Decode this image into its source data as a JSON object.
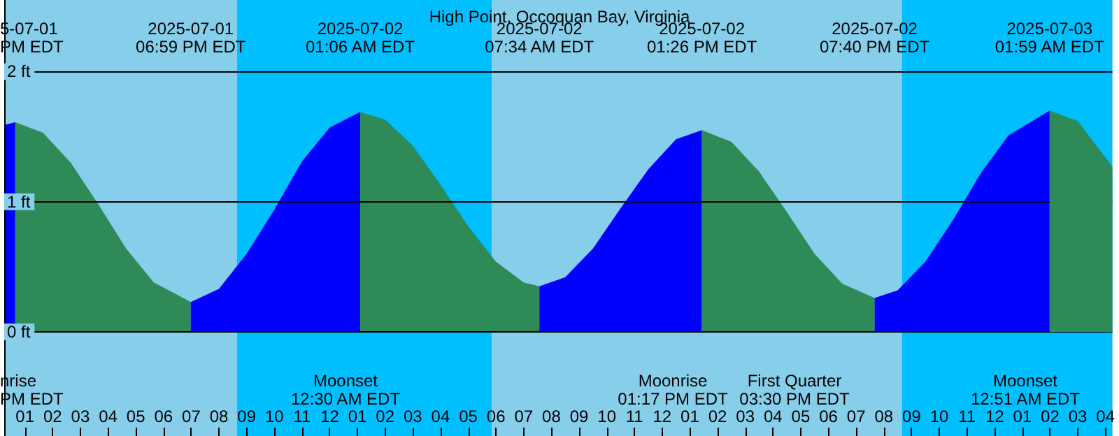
{
  "chart_data": {
    "type": "area",
    "title": "High Point, Occoquan Bay, Virginia",
    "xlim": [
      "2025-07-01T12:15",
      "2025-07-03T04:15"
    ],
    "ylim": [
      -0.8,
      2.55
    ],
    "xticks": [
      {
        "value": "2025-07-01T13:00",
        "label": "01"
      },
      {
        "value": "2025-07-01T14:00",
        "label": "02"
      },
      {
        "value": "2025-07-01T15:00",
        "label": "03"
      },
      {
        "value": "2025-07-01T16:00",
        "label": "04"
      },
      {
        "value": "2025-07-01T17:00",
        "label": "05"
      },
      {
        "value": "2025-07-01T18:00",
        "label": "06"
      },
      {
        "value": "2025-07-01T19:00",
        "label": "07"
      },
      {
        "value": "2025-07-01T20:00",
        "label": "08"
      },
      {
        "value": "2025-07-01T21:00",
        "label": "09"
      },
      {
        "value": "2025-07-01T22:00",
        "label": "10"
      },
      {
        "value": "2025-07-01T23:00",
        "label": "11"
      },
      {
        "value": "2025-07-02T00:00",
        "label": "12"
      },
      {
        "value": "2025-07-02T01:00",
        "label": "01"
      },
      {
        "value": "2025-07-02T02:00",
        "label": "02"
      },
      {
        "value": "2025-07-02T03:00",
        "label": "03"
      },
      {
        "value": "2025-07-02T04:00",
        "label": "04"
      },
      {
        "value": "2025-07-02T05:00",
        "label": "05"
      },
      {
        "value": "2025-07-02T06:00",
        "label": "06"
      },
      {
        "value": "2025-07-02T07:00",
        "label": "07"
      },
      {
        "value": "2025-07-02T08:00",
        "label": "08"
      },
      {
        "value": "2025-07-02T09:00",
        "label": "09"
      },
      {
        "value": "2025-07-02T10:00",
        "label": "10"
      },
      {
        "value": "2025-07-02T11:00",
        "label": "11"
      },
      {
        "value": "2025-07-02T12:00",
        "label": "12"
      },
      {
        "value": "2025-07-02T13:00",
        "label": "01"
      },
      {
        "value": "2025-07-02T14:00",
        "label": "02"
      },
      {
        "value": "2025-07-02T15:00",
        "label": "03"
      },
      {
        "value": "2025-07-02T16:00",
        "label": "04"
      },
      {
        "value": "2025-07-02T17:00",
        "label": "05"
      },
      {
        "value": "2025-07-02T18:00",
        "label": "06"
      },
      {
        "value": "2025-07-02T19:00",
        "label": "07"
      },
      {
        "value": "2025-07-02T20:00",
        "label": "08"
      },
      {
        "value": "2025-07-02T21:00",
        "label": "09"
      },
      {
        "value": "2025-07-02T22:00",
        "label": "10"
      },
      {
        "value": "2025-07-02T23:00",
        "label": "11"
      },
      {
        "value": "2025-07-03T00:00",
        "label": "12"
      },
      {
        "value": "2025-07-03T01:00",
        "label": "01"
      },
      {
        "value": "2025-07-03T02:00",
        "label": "02"
      },
      {
        "value": "2025-07-03T03:00",
        "label": "03"
      },
      {
        "value": "2025-07-03T04:00",
        "label": "04"
      }
    ],
    "yticks": [
      {
        "value": 0,
        "label": "0 ft"
      },
      {
        "value": 1,
        "label": "1 ft"
      },
      {
        "value": 2,
        "label": "2 ft"
      }
    ],
    "grid": "y",
    "bands": [
      {
        "axis": "x",
        "from": "2025-07-01T12:15",
        "to": "2025-07-01T20:39",
        "color": "#87ceeb"
      },
      {
        "axis": "x",
        "from": "2025-07-01T20:39",
        "to": "2025-07-02T05:51",
        "color": "#00bfff"
      },
      {
        "axis": "x",
        "from": "2025-07-02T05:51",
        "to": "2025-07-02T20:39",
        "color": "#87ceeb"
      },
      {
        "axis": "x",
        "from": "2025-07-02T20:39",
        "to": "2025-07-03T04:15",
        "color": "#00bfff"
      }
    ],
    "series": [
      {
        "color": "#0000ff",
        "x": [
          "2025-07-01T12:15",
          "2025-07-01T12:39"
        ],
        "values": [
          1.59,
          1.61
        ]
      },
      {
        "color": "#2e8b57",
        "x": [
          "2025-07-01T12:39",
          "2025-07-01T13:39",
          "2025-07-01T14:39",
          "2025-07-01T15:39",
          "2025-07-01T16:39",
          "2025-07-01T17:39",
          "2025-07-01T18:59"
        ],
        "values": [
          1.61,
          1.53,
          1.3,
          0.98,
          0.64,
          0.38,
          0.23
        ]
      },
      {
        "color": "#0000ff",
        "x": [
          "2025-07-01T18:59",
          "2025-07-01T20:00",
          "2025-07-01T21:00",
          "2025-07-01T22:00",
          "2025-07-01T23:00",
          "2025-07-02T00:00",
          "2025-07-02T01:06"
        ],
        "values": [
          0.23,
          0.33,
          0.6,
          0.94,
          1.31,
          1.57,
          1.69
        ]
      },
      {
        "color": "#2e8b57",
        "x": [
          "2025-07-02T01:06",
          "2025-07-02T02:00",
          "2025-07-02T03:00",
          "2025-07-02T04:00",
          "2025-07-02T05:00",
          "2025-07-02T06:00",
          "2025-07-02T07:00",
          "2025-07-02T07:34"
        ],
        "values": [
          1.69,
          1.63,
          1.43,
          1.13,
          0.81,
          0.54,
          0.38,
          0.35
        ]
      },
      {
        "color": "#0000ff",
        "x": [
          "2025-07-02T07:34",
          "2025-07-02T08:30",
          "2025-07-02T09:30",
          "2025-07-02T10:30",
          "2025-07-02T11:30",
          "2025-07-02T12:30",
          "2025-07-02T13:26"
        ],
        "values": [
          0.35,
          0.42,
          0.64,
          0.95,
          1.25,
          1.48,
          1.55
        ]
      },
      {
        "color": "#2e8b57",
        "x": [
          "2025-07-02T13:26",
          "2025-07-02T14:30",
          "2025-07-02T15:30",
          "2025-07-02T16:30",
          "2025-07-02T17:30",
          "2025-07-02T18:30",
          "2025-07-02T19:40"
        ],
        "values": [
          1.55,
          1.46,
          1.23,
          0.92,
          0.6,
          0.37,
          0.26
        ]
      },
      {
        "color": "#0000ff",
        "x": [
          "2025-07-02T19:40",
          "2025-07-02T20:30",
          "2025-07-02T21:30",
          "2025-07-02T22:30",
          "2025-07-02T23:30",
          "2025-07-03T00:30",
          "2025-07-03T01:59"
        ],
        "values": [
          0.26,
          0.32,
          0.54,
          0.86,
          1.22,
          1.51,
          1.7
        ]
      },
      {
        "color": "#2e8b57",
        "x": [
          "2025-07-03T01:59",
          "2025-07-03T03:00",
          "2025-07-03T04:15"
        ],
        "values": [
          1.7,
          1.62,
          1.27
        ]
      }
    ],
    "annotations": [
      "5-07-01\nPM EDT",
      "nrise\nPM EDT",
      "2025-07-01\n06:59 PM EDT",
      "2025-07-02\n01:06 AM EDT",
      "2025-07-02\n07:34 AM EDT",
      "2025-07-02\n01:26 PM EDT",
      "2025-07-02\n07:40 PM EDT",
      "2025-07-03\n01:59 AM EDT",
      "Moonset\n12:30 AM EDT",
      "Moonrise\n01:17 PM EDT",
      "First Quarter\n03:30 PM EDT",
      "Moonset\n12:51 AM EDT"
    ]
  }
}
